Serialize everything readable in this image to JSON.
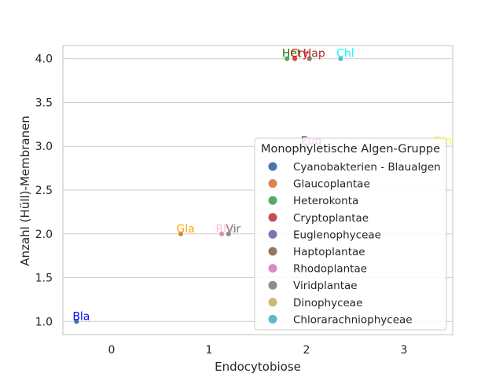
{
  "chart_data": {
    "type": "scatter",
    "title": "",
    "xlabel": "Endocytobiose",
    "ylabel": "Anzahl (Hüll)-Membranen",
    "xlim": [
      -0.5,
      3.5
    ],
    "ylim": [
      0.85,
      4.15
    ],
    "xticks": [
      0,
      1,
      2,
      3
    ],
    "yticks": [
      1.0,
      1.5,
      2.0,
      2.5,
      3.0,
      3.5,
      4.0
    ],
    "xtick_labels": [
      "0",
      "1",
      "2",
      "3"
    ],
    "ytick_labels": [
      "1.0",
      "1.5",
      "2.0",
      "2.5",
      "3.0",
      "3.5",
      "4.0"
    ],
    "grid": "horizontal",
    "legend": {
      "title": "Monophyletische Algen-Gruppe",
      "placement": "lower-right",
      "entries": [
        {
          "name": "Cyanobakterien - Blaualgen",
          "color": "#4c72b0"
        },
        {
          "name": "Glaucoplantae",
          "color": "#dd8452"
        },
        {
          "name": "Heterokonta",
          "color": "#55a868"
        },
        {
          "name": "Cryptoplantae",
          "color": "#c44e52"
        },
        {
          "name": "Euglenophyceae",
          "color": "#8172b3"
        },
        {
          "name": "Haptoplantae",
          "color": "#937860"
        },
        {
          "name": "Rhodoplantae",
          "color": "#da8bc3"
        },
        {
          "name": "Viridplantae",
          "color": "#8c8c8c"
        },
        {
          "name": "Dinophyceae",
          "color": "#ccb974"
        },
        {
          "name": "Chlorarachniophyceae",
          "color": "#64b5cd"
        }
      ]
    },
    "points": [
      {
        "x": -0.36,
        "y": 1.0,
        "color": "#4c72b0",
        "label": "Bla",
        "label_color": "#0000ff"
      },
      {
        "x": 0.71,
        "y": 2.0,
        "color": "#dd8452",
        "label": "Gla",
        "label_color": "#ffa500"
      },
      {
        "x": 1.8,
        "y": 4.0,
        "color": "#55a868",
        "label": "Het",
        "label_color": "#008000"
      },
      {
        "x": 1.88,
        "y": 4.0,
        "color": "#c44e52",
        "label": "Cry",
        "label_color": "#ff0000"
      },
      {
        "x": 2.0,
        "y": 3.0,
        "color": "#8172b3",
        "label": "Eug",
        "label_color": "#800080"
      },
      {
        "x": 2.03,
        "y": 4.0,
        "color": "#937860",
        "label": "Hap",
        "label_color": "#a52a2a"
      },
      {
        "x": 1.13,
        "y": 2.0,
        "color": "#da8bc3",
        "label": "Rho",
        "label_color": "#ffc0cb"
      },
      {
        "x": 1.2,
        "y": 2.0,
        "color": "#8c8c8c",
        "label": "Vir",
        "label_color": "#808080"
      },
      {
        "x": 3.35,
        "y": 3.0,
        "color": "#ccb974",
        "label": "Din",
        "label_color": "#ffff00"
      },
      {
        "x": 2.35,
        "y": 4.0,
        "color": "#64b5cd",
        "label": "Chl",
        "label_color": "#00ffff"
      }
    ]
  }
}
